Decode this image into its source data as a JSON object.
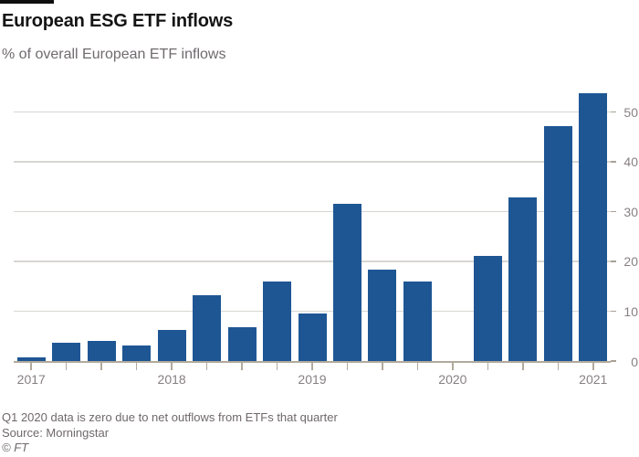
{
  "header": {
    "title": "European ESG ETF inflows",
    "subtitle": "% of overall European ETF inflows"
  },
  "chart_data": {
    "type": "bar",
    "title": "European ESG ETF inflows",
    "subtitle": "% of overall European ETF inflows",
    "x": [
      "Q1 2017",
      "Q2 2017",
      "Q3 2017",
      "Q4 2017",
      "Q1 2018",
      "Q2 2018",
      "Q3 2018",
      "Q4 2018",
      "Q1 2019",
      "Q2 2019",
      "Q3 2019",
      "Q4 2019",
      "Q1 2020",
      "Q2 2020",
      "Q3 2020",
      "Q4 2020",
      "Q1 2021"
    ],
    "values": [
      0.7,
      3.6,
      4.1,
      3.2,
      6.2,
      13.2,
      6.8,
      15.9,
      9.5,
      31.5,
      18.3,
      16.0,
      0,
      21.1,
      32.8,
      47.2,
      53.7
    ],
    "year_labels": [
      {
        "label": "2017",
        "slot": 0
      },
      {
        "label": "2018",
        "slot": 4
      },
      {
        "label": "2019",
        "slot": 8
      },
      {
        "label": "2020",
        "slot": 12
      },
      {
        "label": "2021",
        "slot": 16
      }
    ],
    "y_ticks": [
      0,
      10,
      20,
      30,
      40,
      50
    ],
    "ylim": [
      0,
      55
    ],
    "xlabel": "",
    "ylabel": "",
    "grid": "horizontal",
    "y_axis_position": "right",
    "legend": "none",
    "colors": {
      "bar": "#1e5694",
      "accent_bar": "#0e0e0e",
      "gridline": "#d8d6d1",
      "axis": "#b1a99c",
      "tick_label": "#888083"
    }
  },
  "footer": {
    "footnote": "Q1 2020 data is zero due to net outflows from ETFs that quarter",
    "source": "Source: Morningstar",
    "credit": "© FT"
  }
}
